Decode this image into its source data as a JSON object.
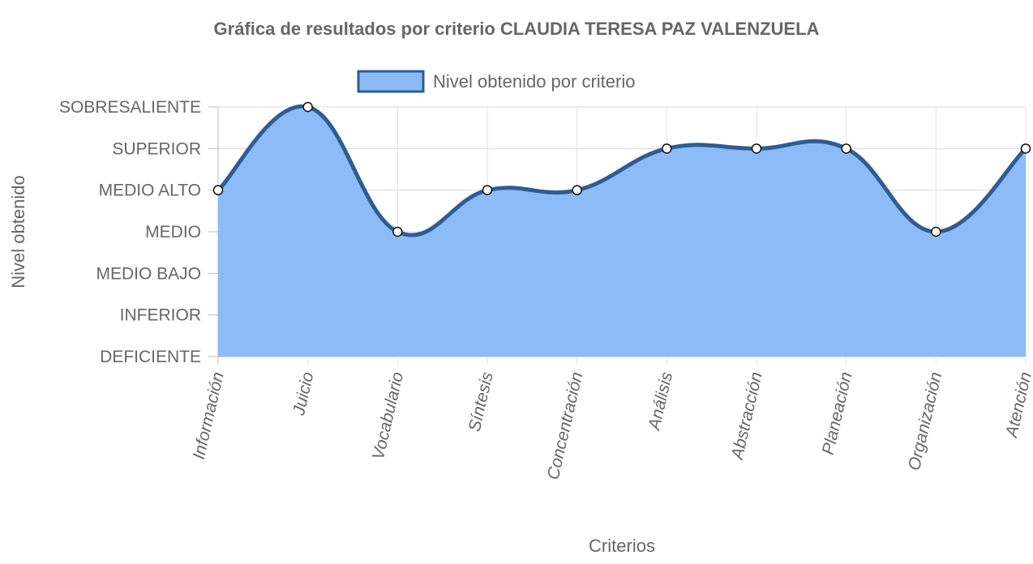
{
  "chart_data": {
    "type": "area",
    "title": "Gráfica de resultados por criterio CLAUDIA TERESA PAZ VALENZUELA",
    "xlabel": "Criterios",
    "ylabel": "Nivel obtenido",
    "categories": [
      "Información",
      "Juicio",
      "Vocabulario",
      "Síntesis",
      "Concentración",
      "Análisis",
      "Abstracción",
      "Planeación",
      "Organización",
      "Atención"
    ],
    "y_levels": [
      "DEFICIENTE",
      "INFERIOR",
      "MEDIO BAJO",
      "MEDIO",
      "MEDIO ALTO",
      "SUPERIOR",
      "SOBRESALIENTE"
    ],
    "series": [
      {
        "name": "Nivel obtenido por criterio",
        "values": [
          4,
          6,
          3,
          4,
          4,
          5,
          5,
          5,
          3,
          5
        ],
        "value_labels": [
          "MEDIO ALTO",
          "SOBRESALIENTE",
          "MEDIO",
          "MEDIO ALTO",
          "MEDIO ALTO",
          "SUPERIOR",
          "SUPERIOR",
          "SUPERIOR",
          "MEDIO",
          "SUPERIOR"
        ]
      }
    ],
    "ylim": [
      0,
      6
    ],
    "grid": true,
    "legend": "top",
    "colors": {
      "fill": "#8abbf7",
      "line": "#2f5d91",
      "point_fill": "#ffffff",
      "point_stroke": "#111111"
    }
  }
}
